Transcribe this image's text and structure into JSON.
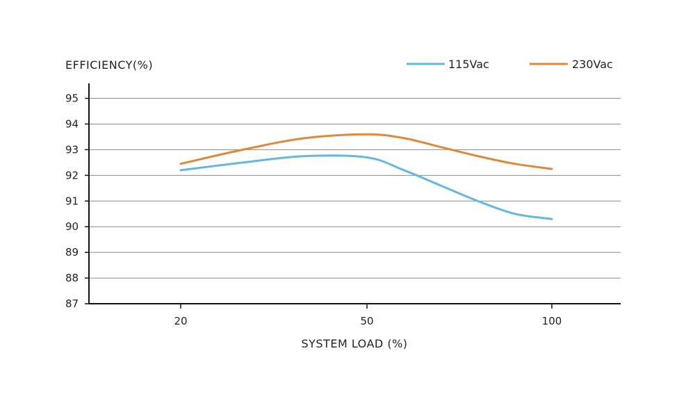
{
  "chart_data": {
    "type": "line",
    "title": "",
    "ylabel": "EFFICIENCY(%)",
    "xlabel": "SYSTEM LOAD (%)",
    "ylim": [
      87,
      95
    ],
    "y_ticks": [
      95,
      94,
      93,
      92,
      91,
      90,
      89,
      88,
      87
    ],
    "x_ticks": [
      "20",
      "50",
      "100"
    ],
    "grid": true,
    "legend": "top-right",
    "series": [
      {
        "name": "115Vac",
        "color": "#62b8e0",
        "points": [
          {
            "x": 20,
            "y": 92.2
          },
          {
            "x": 30,
            "y": 92.5
          },
          {
            "x": 40,
            "y": 92.75
          },
          {
            "x": 50,
            "y": 92.7
          },
          {
            "x": 60,
            "y": 92.2
          },
          {
            "x": 70,
            "y": 91.6
          },
          {
            "x": 80,
            "y": 91.0
          },
          {
            "x": 90,
            "y": 90.5
          },
          {
            "x": 100,
            "y": 90.3
          }
        ]
      },
      {
        "name": "230Vac",
        "color": "#e0883a",
        "points": [
          {
            "x": 20,
            "y": 92.45
          },
          {
            "x": 30,
            "y": 93.0
          },
          {
            "x": 40,
            "y": 93.45
          },
          {
            "x": 50,
            "y": 93.6
          },
          {
            "x": 60,
            "y": 93.45
          },
          {
            "x": 70,
            "y": 93.1
          },
          {
            "x": 80,
            "y": 92.75
          },
          {
            "x": 90,
            "y": 92.45
          },
          {
            "x": 100,
            "y": 92.25
          }
        ]
      }
    ]
  }
}
